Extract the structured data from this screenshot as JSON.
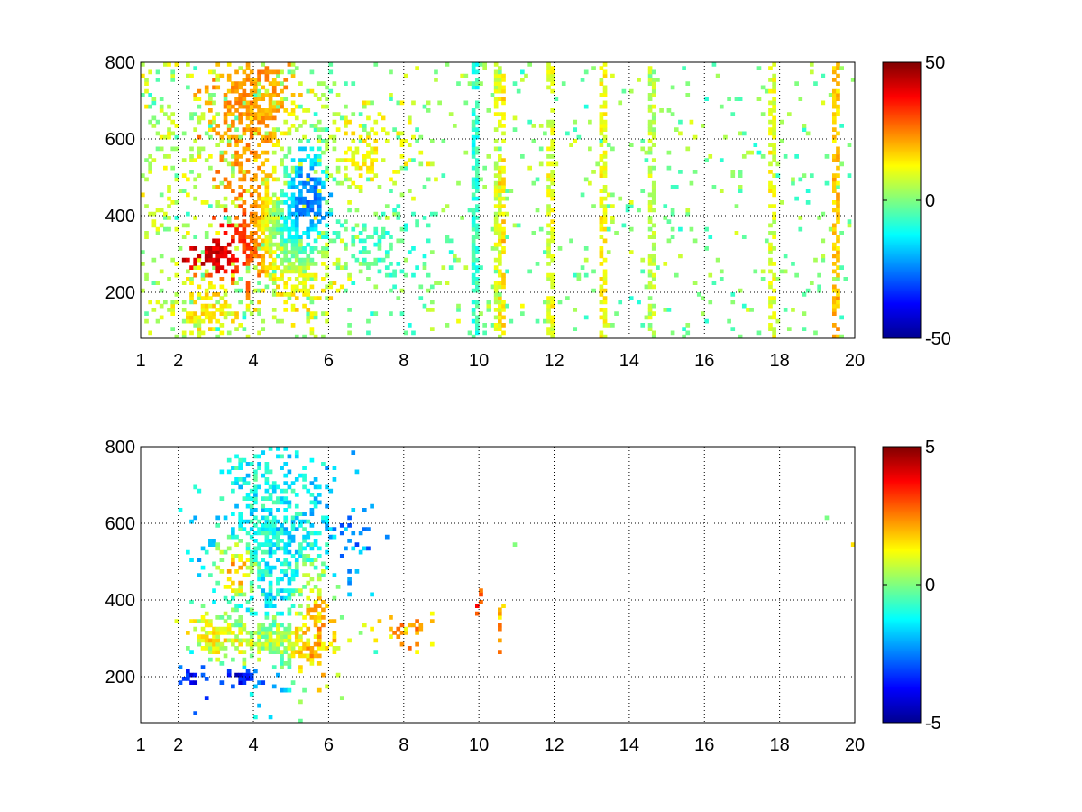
{
  "chart_data": [
    {
      "type": "heatmap",
      "title": "",
      "xlabel": "",
      "ylabel": "",
      "xlim": [
        1,
        20
      ],
      "ylim": [
        80,
        800
      ],
      "x_ticks": [
        1,
        2,
        4,
        6,
        8,
        10,
        12,
        14,
        16,
        18,
        20
      ],
      "x_tick_labels": [
        "1",
        "2",
        "4",
        "6",
        "8",
        "10",
        "12",
        "14",
        "16",
        "18",
        "20"
      ],
      "y_ticks": [
        200,
        400,
        600,
        800
      ],
      "y_tick_labels": [
        "200",
        "400",
        "600",
        "800"
      ],
      "grid": true,
      "colorbar": {
        "colormap": "jet",
        "range": [
          -50,
          50
        ],
        "tick_labels": [
          "50",
          "0",
          "-50"
        ]
      },
      "blobs": [
        {
          "x": 3.0,
          "y": 300,
          "rx": 0.35,
          "ry": 25,
          "value": 42,
          "density": 0.95
        },
        {
          "x": 4.0,
          "y": 320,
          "rx": 0.5,
          "ry": 50,
          "value": 38,
          "density": 0.9
        },
        {
          "x": 4.3,
          "y": 400,
          "rx": 0.5,
          "ry": 70,
          "value": 30,
          "density": 0.8
        },
        {
          "x": 4.0,
          "y": 670,
          "rx": 0.6,
          "ry": 110,
          "value": 22,
          "density": 0.7
        },
        {
          "x": 4.8,
          "y": 360,
          "rx": 0.45,
          "ry": 60,
          "value": -40,
          "density": 0.85
        },
        {
          "x": 5.4,
          "y": 440,
          "rx": 0.45,
          "ry": 90,
          "value": -30,
          "density": 0.75
        },
        {
          "x": 5.2,
          "y": 280,
          "rx": 0.7,
          "ry": 60,
          "value": 18,
          "density": 0.7
        },
        {
          "x": 2.8,
          "y": 150,
          "rx": 0.4,
          "ry": 40,
          "value": 14,
          "density": 0.6
        },
        {
          "x": 6.8,
          "y": 560,
          "rx": 0.7,
          "ry": 60,
          "value": 12,
          "density": 0.45
        },
        {
          "x": 7.5,
          "y": 330,
          "rx": 0.9,
          "ry": 50,
          "value": -6,
          "density": 0.45
        }
      ],
      "columns": [
        {
          "x": 10.6,
          "value": 15
        },
        {
          "x": 10.5,
          "value": 8
        },
        {
          "x": 11.9,
          "value": 10
        },
        {
          "x": 13.3,
          "value": 12
        },
        {
          "x": 19.5,
          "value": 18
        },
        {
          "x": 9.9,
          "value": -8
        },
        {
          "x": 14.6,
          "value": 6
        },
        {
          "x": 17.8,
          "value": 10
        }
      ]
    },
    {
      "type": "heatmap",
      "title": "",
      "xlabel": "",
      "ylabel": "",
      "xlim": [
        1,
        20
      ],
      "ylim": [
        80,
        800
      ],
      "x_ticks": [
        1,
        2,
        4,
        6,
        8,
        10,
        12,
        14,
        16,
        18,
        20
      ],
      "x_tick_labels": [
        "1",
        "2",
        "4",
        "6",
        "8",
        "10",
        "12",
        "14",
        "16",
        "18",
        "20"
      ],
      "y_ticks": [
        200,
        400,
        600,
        800
      ],
      "y_tick_labels": [
        "200",
        "400",
        "600",
        "800"
      ],
      "grid": true,
      "colorbar": {
        "colormap": "jet",
        "range": [
          -5,
          5
        ],
        "tick_labels": [
          "5",
          "0",
          "-5"
        ]
      },
      "blobs": [
        {
          "x": 3.0,
          "y": 300,
          "rx": 0.4,
          "ry": 30,
          "value": 1.6,
          "density": 0.9
        },
        {
          "x": 4.5,
          "y": 300,
          "rx": 1.0,
          "ry": 40,
          "value": 1.5,
          "density": 0.9
        },
        {
          "x": 4.6,
          "y": 500,
          "rx": 1.0,
          "ry": 170,
          "value": -1.5,
          "density": 0.6
        },
        {
          "x": 4.2,
          "y": 650,
          "rx": 0.6,
          "ry": 110,
          "value": -1.0,
          "density": 0.35
        },
        {
          "x": 3.8,
          "y": 200,
          "rx": 0.35,
          "ry": 12,
          "value": -4.5,
          "density": 0.85
        },
        {
          "x": 5.6,
          "y": 350,
          "rx": 0.35,
          "ry": 90,
          "value": 3.2,
          "density": 0.45
        },
        {
          "x": 3.6,
          "y": 480,
          "rx": 0.3,
          "ry": 40,
          "value": 4.5,
          "density": 0.35
        },
        {
          "x": 2.5,
          "y": 200,
          "rx": 0.3,
          "ry": 40,
          "value": -3.5,
          "density": 0.4
        },
        {
          "x": 6.6,
          "y": 540,
          "rx": 0.4,
          "ry": 60,
          "value": -2.5,
          "density": 0.3
        },
        {
          "x": 8.0,
          "y": 320,
          "rx": 0.35,
          "ry": 25,
          "value": 2.0,
          "density": 0.45
        },
        {
          "x": 10.0,
          "y": 400,
          "rx": 0.05,
          "ry": 25,
          "value": 3.0,
          "density": 0.95
        },
        {
          "x": 10.55,
          "y": 340,
          "rx": 0.05,
          "ry": 40,
          "value": 2.0,
          "density": 0.8
        }
      ],
      "columns": []
    }
  ]
}
